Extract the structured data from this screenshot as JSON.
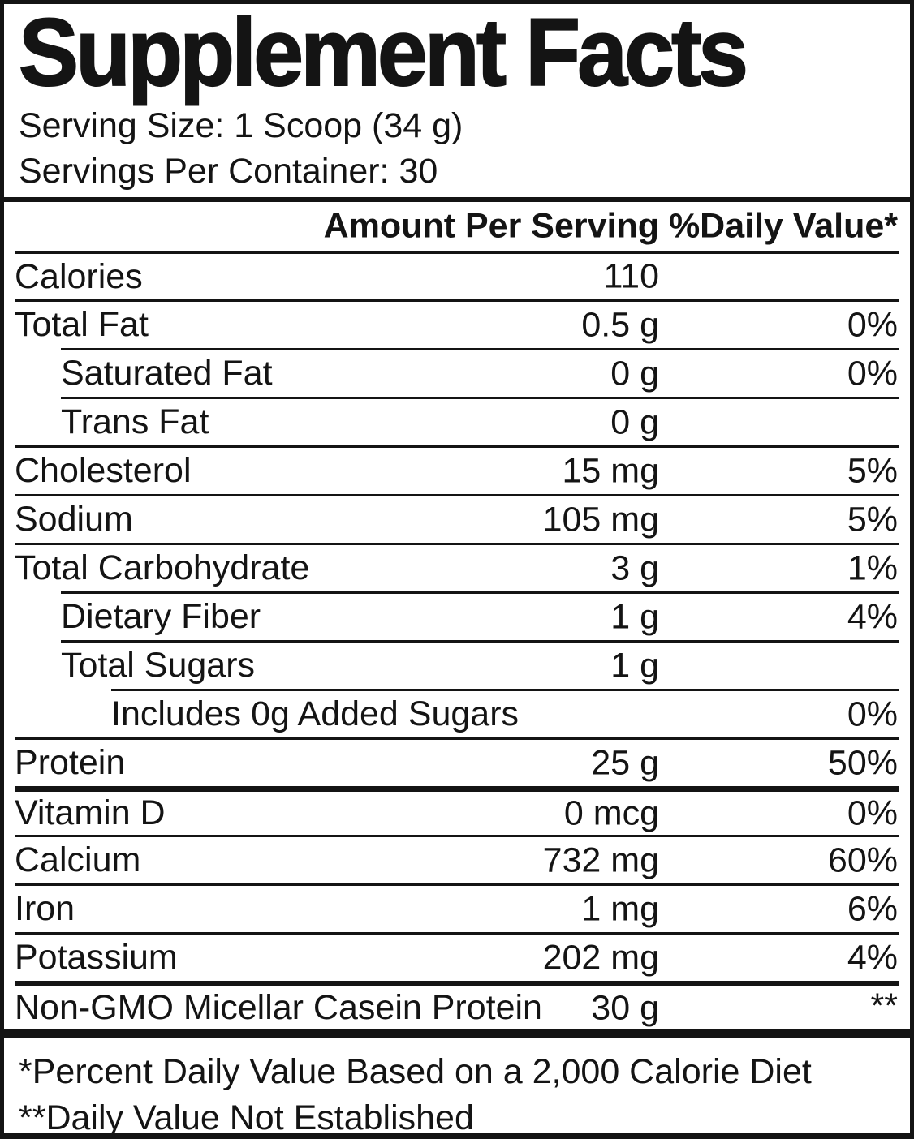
{
  "label": {
    "title": "Supplement Facts",
    "serving_size": "Serving Size: 1 Scoop (34 g)",
    "servings_per_container": "Servings Per Container: 30",
    "columns": {
      "amount": "Amount Per Serving",
      "daily_value": "%Daily Value*"
    },
    "rows": [
      {
        "name": "Calories",
        "amount": "110",
        "dv": "",
        "indent": 0,
        "rule": "med"
      },
      {
        "name": "Total Fat",
        "amount": "0.5 g",
        "dv": "0%",
        "indent": 0,
        "rule": "thin"
      },
      {
        "name": "Saturated Fat",
        "amount": "0 g",
        "dv": "0%",
        "indent": 1,
        "rule": "thin"
      },
      {
        "name": "Trans Fat",
        "amount": "0 g",
        "dv": "",
        "indent": 1,
        "rule": "thin"
      },
      {
        "name": "Cholesterol",
        "amount": "15 mg",
        "dv": "5%",
        "indent": 0,
        "rule": "thin"
      },
      {
        "name": "Sodium",
        "amount": "105 mg",
        "dv": "5%",
        "indent": 0,
        "rule": "thin"
      },
      {
        "name": "Total Carbohydrate",
        "amount": "3 g",
        "dv": "1%",
        "indent": 0,
        "rule": "thin"
      },
      {
        "name": "Dietary Fiber",
        "amount": "1 g",
        "dv": "4%",
        "indent": 1,
        "rule": "thin"
      },
      {
        "name": "Total Sugars",
        "amount": "1 g",
        "dv": "",
        "indent": 1,
        "rule": "thin"
      },
      {
        "name": "Includes 0g Added Sugars",
        "amount": "",
        "dv": "0%",
        "indent": 2,
        "rule": "thin"
      },
      {
        "name": "Protein",
        "amount": "25 g",
        "dv": "50%",
        "indent": 0,
        "rule": "thin"
      },
      {
        "name": "Vitamin D",
        "amount": "0 mcg",
        "dv": "0%",
        "indent": 0,
        "rule": "thick"
      },
      {
        "name": "Calcium",
        "amount": "732 mg",
        "dv": "60%",
        "indent": 0,
        "rule": "thin"
      },
      {
        "name": "Iron",
        "amount": "1 mg",
        "dv": "6%",
        "indent": 0,
        "rule": "thin"
      },
      {
        "name": "Potassium",
        "amount": "202 mg",
        "dv": "4%",
        "indent": 0,
        "rule": "thin"
      },
      {
        "name": "Non-GMO Micellar Casein Protein",
        "amount": "30 g",
        "dv": "**",
        "indent": 0,
        "rule": "thick",
        "dv_top": true
      }
    ],
    "footnotes": [
      "*Percent Daily Value Based on a 2,000 Calorie Diet",
      "**Daily Value Not Established"
    ],
    "colors": {
      "ink": "#141414",
      "background": "#ffffff"
    }
  }
}
